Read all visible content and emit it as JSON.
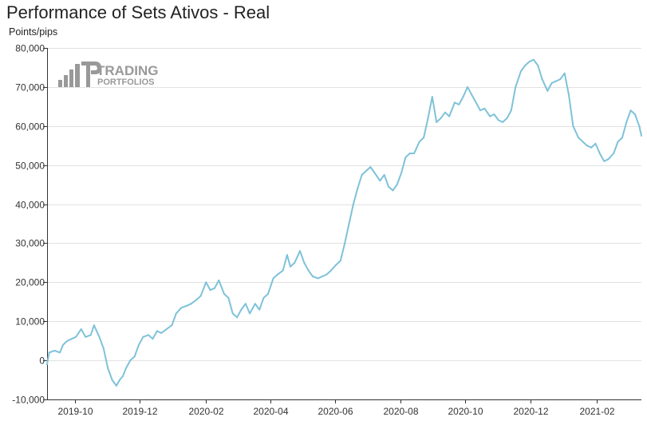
{
  "chart_data": {
    "type": "line",
    "title": "Performance of Sets Ativos - Real",
    "ylabel": "Points/pips",
    "xlabel": "",
    "ylim": [
      -10000,
      80000
    ],
    "xlim": [
      "2019-09-05",
      "2021-03-15"
    ],
    "grid": "horizontal",
    "legend": "none",
    "line_color": "#7ec2d9",
    "y_ticks": [
      -10000,
      0,
      10000,
      20000,
      30000,
      40000,
      50000,
      60000,
      70000,
      80000
    ],
    "y_tick_labels": [
      "-10,000",
      "0",
      "10,000",
      "20,000",
      "30,000",
      "40,000",
      "50,000",
      "60,000",
      "70,000",
      "80,000"
    ],
    "x_ticks": [
      "2019-10-01",
      "2019-12-01",
      "2020-02-01",
      "2020-04-01",
      "2020-06-01",
      "2020-08-01",
      "2020-10-01",
      "2020-12-01",
      "2021-02-01"
    ],
    "x_tick_labels": [
      "2019-10",
      "2019-12",
      "2020-02",
      "2020-04",
      "2020-06",
      "2020-08",
      "2020-10",
      "2020-12",
      "2021-02"
    ],
    "series": [
      {
        "x": [
          "2019-09-05",
          "2019-09-07",
          "2019-09-12",
          "2019-09-17",
          "2019-09-20",
          "2019-09-24",
          "2019-09-28",
          "2019-10-02",
          "2019-10-07",
          "2019-10-11",
          "2019-10-16",
          "2019-10-19",
          "2019-10-24",
          "2019-10-28",
          "2019-11-01",
          "2019-11-05",
          "2019-11-09",
          "2019-11-12",
          "2019-11-15",
          "2019-11-18",
          "2019-11-22",
          "2019-11-26",
          "2019-11-30",
          "2019-12-04",
          "2019-12-09",
          "2019-12-13",
          "2019-12-17",
          "2019-12-21",
          "2019-12-26",
          "2019-12-31",
          "2020-01-04",
          "2020-01-09",
          "2020-01-14",
          "2020-01-18",
          "2020-01-23",
          "2020-01-27",
          "2020-02-01",
          "2020-02-05",
          "2020-02-09",
          "2020-02-13",
          "2020-02-18",
          "2020-02-22",
          "2020-02-26",
          "2020-03-01",
          "2020-03-05",
          "2020-03-09",
          "2020-03-13",
          "2020-03-18",
          "2020-03-22",
          "2020-03-26",
          "2020-03-30",
          "2020-04-04",
          "2020-04-08",
          "2020-04-13",
          "2020-04-17",
          "2020-04-20",
          "2020-04-24",
          "2020-04-29",
          "2020-05-03",
          "2020-05-07",
          "2020-05-11",
          "2020-05-16",
          "2020-05-20",
          "2020-05-24",
          "2020-05-28",
          "2020-06-02",
          "2020-06-06",
          "2020-06-10",
          "2020-06-14",
          "2020-06-18",
          "2020-06-22",
          "2020-06-26",
          "2020-06-30",
          "2020-07-04",
          "2020-07-08",
          "2020-07-13",
          "2020-07-17",
          "2020-07-21",
          "2020-07-25",
          "2020-07-29",
          "2020-08-02",
          "2020-08-06",
          "2020-08-10",
          "2020-08-14",
          "2020-08-19",
          "2020-08-23",
          "2020-08-27",
          "2020-08-31",
          "2020-09-04",
          "2020-09-08",
          "2020-09-12",
          "2020-09-16",
          "2020-09-21",
          "2020-09-25",
          "2020-09-29",
          "2020-10-03",
          "2020-10-07",
          "2020-10-11",
          "2020-10-15",
          "2020-10-19",
          "2020-10-24",
          "2020-10-28",
          "2020-11-01",
          "2020-11-05",
          "2020-11-09",
          "2020-11-13",
          "2020-11-17",
          "2020-11-22",
          "2020-11-26",
          "2020-11-30",
          "2020-12-04",
          "2020-12-08",
          "2020-12-12",
          "2020-12-17",
          "2020-12-21",
          "2020-12-25",
          "2020-12-29",
          "2021-01-02",
          "2021-01-06",
          "2021-01-10",
          "2021-01-15",
          "2021-01-19",
          "2021-01-23",
          "2021-01-27",
          "2021-01-31",
          "2021-02-04",
          "2021-02-08",
          "2021-02-12",
          "2021-02-17",
          "2021-02-21",
          "2021-02-25",
          "2021-03-01",
          "2021-03-05",
          "2021-03-09",
          "2021-03-13",
          "2021-03-15"
        ],
        "y": [
          -1000,
          2000,
          2500,
          2000,
          4000,
          5000,
          5500,
          6000,
          8000,
          6000,
          6500,
          9000,
          6000,
          3000,
          -2000,
          -5000,
          -6500,
          -5000,
          -4000,
          -2000,
          0,
          1000,
          4000,
          6000,
          6500,
          5500,
          7500,
          7000,
          8000,
          9000,
          12000,
          13500,
          14000,
          14500,
          15500,
          16500,
          20000,
          18000,
          18500,
          20500,
          17000,
          16000,
          12000,
          11000,
          13000,
          14500,
          12000,
          14500,
          13000,
          16000,
          17000,
          21000,
          22000,
          23000,
          27000,
          24000,
          25000,
          28000,
          25000,
          23000,
          21500,
          21000,
          21500,
          22000,
          23000,
          24500,
          25500,
          30000,
          35000,
          40000,
          44000,
          47500,
          48500,
          49500,
          48000,
          46000,
          47500,
          44500,
          43500,
          45000,
          48000,
          52000,
          53000,
          53000,
          56000,
          57000,
          62000,
          67500,
          61000,
          62000,
          63500,
          62500,
          66000,
          65500,
          67500,
          70000,
          68000,
          66000,
          64000,
          64500,
          62500,
          63000,
          61500,
          61000,
          62000,
          64000,
          70000,
          74000,
          75500,
          76500,
          77000,
          75500,
          72000,
          69000,
          71000,
          71500,
          72000,
          73500,
          68000,
          60000,
          57000,
          56000,
          55000,
          54500,
          55500,
          53000,
          51000,
          51500,
          53000,
          56000,
          57000,
          61000,
          64000,
          63000,
          60000,
          57500
        ]
      }
    ]
  },
  "logo": {
    "line1": "TRADING",
    "line2": "PORTFOLIOS"
  }
}
